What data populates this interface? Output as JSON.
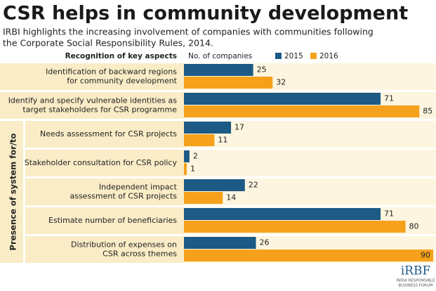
{
  "chart_data": {
    "type": "hbar",
    "title": "CSR helps in community development",
    "subtitle": [
      "IRBI highlights the increasing involvement of companies with communities following",
      "the Corporate Social Responsibility Rules, 2014."
    ],
    "category_header": "Recognition of key aspects",
    "value_header": "No. of companies",
    "group_label": "Presence of system for/to",
    "categories": [
      [
        "Identification of backward regions",
        "for community development"
      ],
      [
        "Identify and specify vulnerable identities as",
        "target stakeholders for CSR programme"
      ],
      [
        "Needs assessment for CSR projects"
      ],
      [
        "Stakeholder consultation for CSR policy"
      ],
      [
        "Independent impact",
        "assessment of CSR projects"
      ],
      [
        "Estimate number of beneficiaries"
      ],
      [
        "Distribution of expenses on",
        "CSR across themes"
      ]
    ],
    "series": [
      {
        "name": "2015",
        "color": "#1d5a86",
        "values": [
          25,
          71,
          17,
          2,
          22,
          71,
          26
        ]
      },
      {
        "name": "2016",
        "color": "#f5a11c",
        "values": [
          32,
          85,
          11,
          1,
          14,
          80,
          90
        ]
      }
    ],
    "xlim": [
      0,
      90
    ],
    "logo": {
      "name": "iRBF",
      "tagline": [
        "INDIA RESPONSIBLE",
        "BUSINESS FORUM"
      ]
    }
  }
}
